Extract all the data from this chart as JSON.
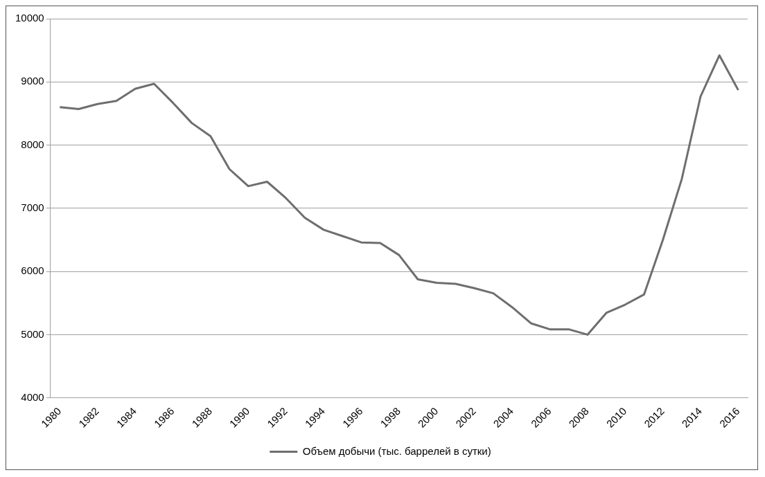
{
  "chart_data": {
    "type": "line",
    "categories": [
      "1980",
      null,
      "1982",
      null,
      "1984",
      null,
      "1986",
      null,
      "1988",
      null,
      "1990",
      null,
      "1992",
      null,
      "1994",
      null,
      "1996",
      null,
      "1998",
      null,
      "2000",
      null,
      "2002",
      null,
      "2004",
      null,
      "2006",
      null,
      "2008",
      null,
      "2010",
      null,
      "2012",
      null,
      "2014",
      null,
      "2016"
    ],
    "series": [
      {
        "name": "Объем добычи (тыс. баррелей в сутки)",
        "color": "#6e6e6e",
        "values": [
          8600,
          8570,
          8650,
          8700,
          8890,
          8970,
          8670,
          8350,
          8140,
          7620,
          7350,
          7420,
          7160,
          6850,
          6660,
          6560,
          6460,
          6450,
          6260,
          5875,
          5820,
          5805,
          5735,
          5655,
          5435,
          5180,
          5085,
          5085,
          5000,
          5345,
          5475,
          5635,
          6500,
          7460,
          8770,
          9420,
          8870
        ]
      }
    ],
    "ylim": [
      4000,
      10000
    ],
    "yticks": [
      4000,
      5000,
      6000,
      7000,
      8000,
      9000,
      10000
    ],
    "grid": "y",
    "legend": "bottom",
    "marker": "none",
    "line_style": "solid"
  }
}
